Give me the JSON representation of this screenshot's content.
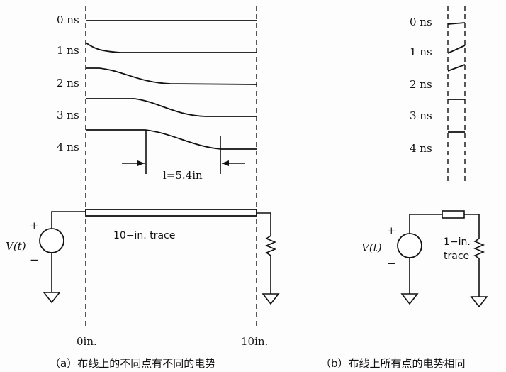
{
  "panel_a": {
    "time_labels": [
      "0 ns",
      "1 ns",
      "2 ns",
      "3 ns",
      "4 ns"
    ],
    "length_label": "l=5.4in",
    "source_label": "V(t)",
    "plus": "+",
    "minus": "−",
    "trace_label": "10−in.  trace",
    "x_start": "0in.",
    "x_end": "10in.",
    "caption": "（a）布线上的不同点有不同的电势"
  },
  "panel_b": {
    "time_labels": [
      "0 ns",
      "1 ns",
      "2 ns",
      "3 ns",
      "4 ns"
    ],
    "source_label": "V(t)",
    "plus": "+",
    "minus": "−",
    "trace_line1": "1−in.",
    "trace_line2": "trace",
    "caption": "（b）布线上所有点的电势相同"
  }
}
